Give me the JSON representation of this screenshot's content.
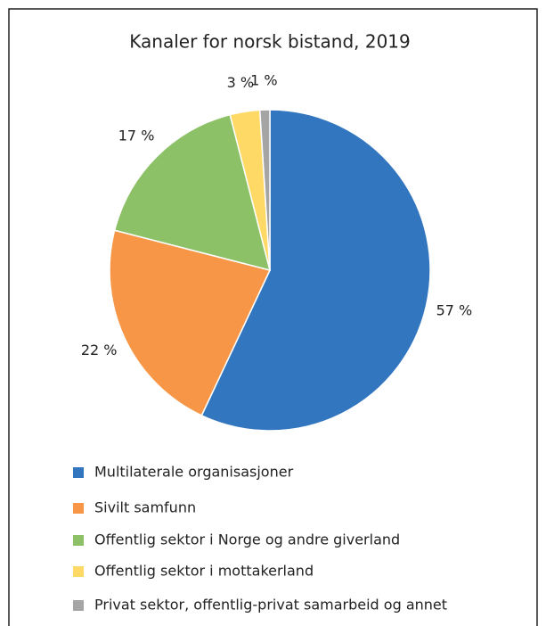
{
  "chart_data": {
    "type": "pie",
    "title": "Kanaler for norsk bistand, 2019",
    "categories": [
      "Multilaterale organisasjoner",
      "Sivilt samfunn",
      "Offentlig sektor i Norge og andre giverland",
      "Offentlig sektor i mottakerland",
      "Privat sektor, offentlig-privat samarbeid og annet"
    ],
    "values": [
      57,
      22,
      17,
      3,
      1
    ],
    "value_labels": [
      "57 %",
      "22 %",
      "17 %",
      "3 %",
      "1 %"
    ],
    "colors": [
      "#3276c0",
      "#f79646",
      "#8cc168",
      "#ffd966",
      "#a5a5a5"
    ],
    "legend": "bottom"
  }
}
